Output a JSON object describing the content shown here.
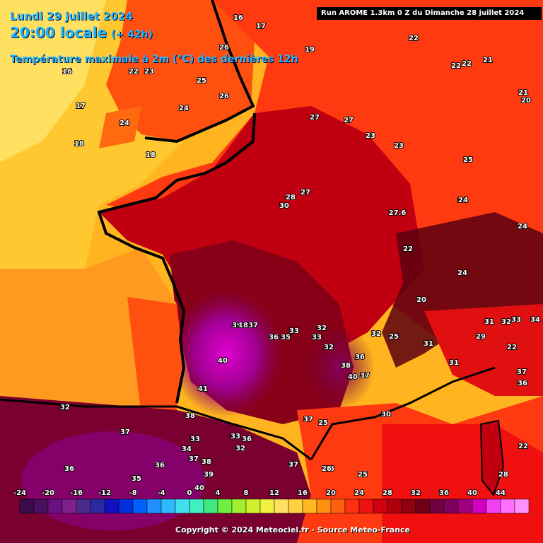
{
  "header": {
    "date": "Lundi 29 juillet 2024",
    "time": "20:00 locale",
    "lead": "(+ 42h)",
    "parameter": "Température maximale à 2m (°C) des dernières 12h",
    "run": "Run AROME 1.3km 0 Z du Dimanche 28 juillet 2024"
  },
  "footer": {
    "copyright": "Copyright © 2024 Meteociel.fr - Source Meteo-France"
  },
  "legend": {
    "labels": [
      "-24",
      "-20",
      "-16",
      "-12",
      "-8",
      "-4",
      "0",
      "4",
      "8",
      "12",
      "16",
      "20",
      "24",
      "28",
      "32",
      "36",
      "40",
      "44"
    ],
    "colors": [
      "#3a0a4a",
      "#4a1060",
      "#6a1080",
      "#80208a",
      "#4a2a8a",
      "#2a2aa0",
      "#1010c0",
      "#0030e0",
      "#0060ff",
      "#2090ff",
      "#30b8ff",
      "#40e0f0",
      "#40f0c0",
      "#40e880",
      "#70f040",
      "#a0f030",
      "#d0f030",
      "#f0f040",
      "#ffe060",
      "#ffd040",
      "#ffb820",
      "#ff9010",
      "#ff6010",
      "#ff3010",
      "#f01010",
      "#d00010",
      "#b00010",
      "#900010",
      "#700018",
      "#700040",
      "#800060",
      "#a00080",
      "#d000c0",
      "#f040f0",
      "#ff70ff",
      "#ff90ff"
    ]
  },
  "temperature_labels": [
    {
      "t": "16"
    },
    {
      "t": "17"
    },
    {
      "t": "19"
    },
    {
      "t": "22"
    },
    {
      "t": "22"
    },
    {
      "t": "21"
    },
    {
      "t": "22"
    },
    {
      "t": "21"
    },
    {
      "t": "20"
    },
    {
      "t": "16"
    },
    {
      "t": "22"
    },
    {
      "t": "23"
    },
    {
      "t": "25"
    },
    {
      "t": "26"
    },
    {
      "t": "26"
    },
    {
      "t": "24"
    },
    {
      "t": "17"
    },
    {
      "t": "24"
    },
    {
      "t": "18"
    },
    {
      "t": "18"
    },
    {
      "t": "27"
    },
    {
      "t": "27"
    },
    {
      "t": "23"
    },
    {
      "t": "23"
    },
    {
      "t": "25"
    },
    {
      "t": "24"
    },
    {
      "t": "24"
    },
    {
      "t": "28"
    },
    {
      "t": "27"
    },
    {
      "t": "30"
    },
    {
      "t": "27.6"
    },
    {
      "t": "24"
    },
    {
      "t": "22"
    },
    {
      "t": "24"
    },
    {
      "t": "20"
    },
    {
      "t": "39"
    },
    {
      "t": "18"
    },
    {
      "t": "37"
    },
    {
      "t": "36"
    },
    {
      "t": "35"
    },
    {
      "t": "33"
    },
    {
      "t": "32"
    },
    {
      "t": "33"
    },
    {
      "t": "32"
    },
    {
      "t": "32"
    },
    {
      "t": "31"
    },
    {
      "t": "31"
    },
    {
      "t": "32"
    },
    {
      "t": "33"
    },
    {
      "t": "34"
    },
    {
      "t": "29"
    },
    {
      "t": "22"
    },
    {
      "t": "25"
    },
    {
      "t": "40"
    },
    {
      "t": "38"
    },
    {
      "t": "40"
    },
    {
      "t": "37"
    },
    {
      "t": "36"
    },
    {
      "t": "31"
    },
    {
      "t": "37"
    },
    {
      "t": "36"
    },
    {
      "t": "41"
    },
    {
      "t": "32"
    },
    {
      "t": "30"
    },
    {
      "t": "25"
    },
    {
      "t": "37"
    },
    {
      "t": "33"
    },
    {
      "t": "36"
    },
    {
      "t": "32"
    },
    {
      "t": "38"
    },
    {
      "t": "33"
    },
    {
      "t": "34"
    },
    {
      "t": "37"
    },
    {
      "t": "26"
    },
    {
      "t": "25"
    },
    {
      "t": "36"
    },
    {
      "t": "36"
    },
    {
      "t": "37"
    },
    {
      "t": "38"
    },
    {
      "t": "39"
    },
    {
      "t": "35"
    },
    {
      "t": "40"
    },
    {
      "t": "28"
    },
    {
      "t": "22"
    },
    {
      "t": "37"
    },
    {
      "t": "26"
    }
  ]
}
